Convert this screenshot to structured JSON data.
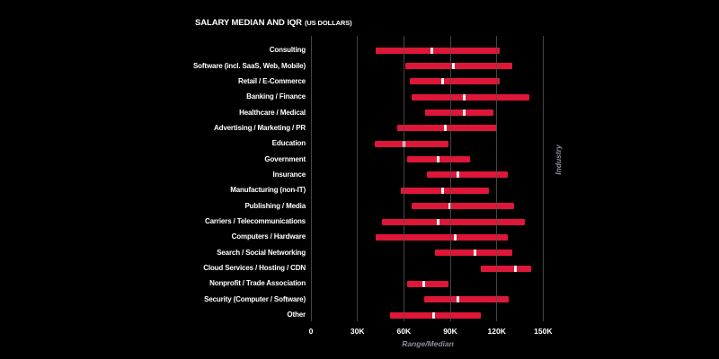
{
  "title": {
    "main": "SALARY MEDIAN AND IQR",
    "sub": "(US DOLLARS)"
  },
  "colors": {
    "background": "#000000",
    "bar": "#de1638",
    "median_tick": "#ffffff",
    "grid": "#4d4d4d",
    "text": "#ffffff",
    "muted_text": "#8b8f97"
  },
  "chart_data": {
    "type": "bar",
    "subtype": "horizontal-range-iqr-with-median",
    "title": "SALARY MEDIAN AND IQR (US DOLLARS)",
    "xlabel": "Range/Median",
    "ylabel": "Industry",
    "value_unit": "thousand US dollars",
    "x_tick_labels": [
      "0",
      "30K",
      "60K",
      "90K",
      "120K",
      "150K"
    ],
    "x_tick_values_thousands": [
      0,
      30,
      60,
      90,
      120,
      150
    ],
    "xlim_thousands": [
      0,
      150
    ],
    "grid": "vertical",
    "legend": "none",
    "series": [
      {
        "label": "Consulting",
        "iqr_low": 42,
        "median": 78,
        "iqr_high": 122
      },
      {
        "label": "Software (incl. SaaS, Web, Mobile)",
        "iqr_low": 61,
        "median": 92,
        "iqr_high": 130
      },
      {
        "label": "Retail / E-Commerce",
        "iqr_low": 64,
        "median": 85,
        "iqr_high": 122
      },
      {
        "label": "Banking / Finance",
        "iqr_low": 65,
        "median": 99,
        "iqr_high": 141
      },
      {
        "label": "Healthcare / Medical",
        "iqr_low": 74,
        "median": 99,
        "iqr_high": 118
      },
      {
        "label": "Advertising / Marketing / PR",
        "iqr_low": 56,
        "median": 87,
        "iqr_high": 120
      },
      {
        "label": "Education",
        "iqr_low": 41,
        "median": 60,
        "iqr_high": 89
      },
      {
        "label": "Government",
        "iqr_low": 62,
        "median": 82,
        "iqr_high": 103
      },
      {
        "label": "Insurance",
        "iqr_low": 75,
        "median": 95,
        "iqr_high": 127
      },
      {
        "label": "Manufacturing (non-IT)",
        "iqr_low": 58,
        "median": 85,
        "iqr_high": 115
      },
      {
        "label": "Publishing / Media",
        "iqr_low": 65,
        "median": 90,
        "iqr_high": 131
      },
      {
        "label": "Carriers / Telecommunications",
        "iqr_low": 46,
        "median": 82,
        "iqr_high": 138
      },
      {
        "label": "Computers / Hardware",
        "iqr_low": 42,
        "median": 93,
        "iqr_high": 127
      },
      {
        "label": "Search / Social Networking",
        "iqr_low": 80,
        "median": 106,
        "iqr_high": 130
      },
      {
        "label": "Cloud Services / Hosting / CDN",
        "iqr_low": 110,
        "median": 132,
        "iqr_high": 142
      },
      {
        "label": "Nonprofit / Trade Association",
        "iqr_low": 62,
        "median": 73,
        "iqr_high": 89
      },
      {
        "label": "Security (Computer / Software)",
        "iqr_low": 73,
        "median": 95,
        "iqr_high": 128
      },
      {
        "label": "Other",
        "iqr_low": 51,
        "median": 79,
        "iqr_high": 110
      }
    ]
  }
}
